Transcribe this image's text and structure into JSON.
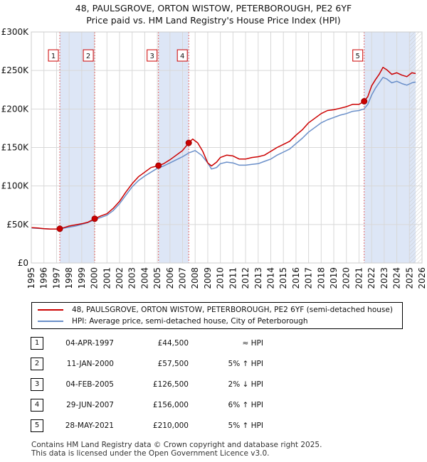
{
  "title": {
    "line1": "48, PAULSGROVE, ORTON WISTOW, PETERBOROUGH, PE2 6YF",
    "line2": "Price paid vs. HM Land Registry's House Price Index (HPI)"
  },
  "colors": {
    "property": "#cc0000",
    "hpi": "#6a8fc9",
    "shade": "#dde6f6",
    "grid": "#d8d8d8"
  },
  "chart_data": {
    "type": "line",
    "xlim": [
      1995,
      2026
    ],
    "ylim": [
      0,
      300000
    ],
    "x_ticks": [
      1995,
      1996,
      1997,
      1998,
      1999,
      2000,
      2001,
      2002,
      2003,
      2004,
      2005,
      2006,
      2007,
      2008,
      2009,
      2010,
      2011,
      2012,
      2013,
      2014,
      2015,
      2016,
      2017,
      2018,
      2019,
      2020,
      2021,
      2022,
      2023,
      2024,
      2025,
      2026
    ],
    "y_ticks": [
      {
        "value": 0,
        "label": "£0"
      },
      {
        "value": 50000,
        "label": "£50K"
      },
      {
        "value": 100000,
        "label": "£100K"
      },
      {
        "value": 150000,
        "label": "£150K"
      },
      {
        "value": 200000,
        "label": "£200K"
      },
      {
        "value": 250000,
        "label": "£250K"
      },
      {
        "value": 300000,
        "label": "£300K"
      }
    ],
    "series": [
      {
        "name": "48, PAULSGROVE, ORTON WISTOW, PETERBOROUGH, PE2 6YF (semi-detached house)",
        "x": [
          1995.0,
          1995.5,
          1996.0,
          1996.5,
          1997.0,
          1997.26,
          1997.6,
          1998.0,
          1998.5,
          1999.0,
          1999.5,
          2000.03,
          2000.5,
          2001.0,
          2001.5,
          2002.0,
          2002.5,
          2003.0,
          2003.5,
          2004.0,
          2004.5,
          2005.09,
          2005.5,
          2006.0,
          2006.5,
          2007.0,
          2007.49,
          2007.8,
          2008.2,
          2008.6,
          2009.0,
          2009.3,
          2009.7,
          2010.0,
          2010.5,
          2011.0,
          2011.5,
          2012.0,
          2012.5,
          2013.0,
          2013.5,
          2014.0,
          2014.5,
          2015.0,
          2015.5,
          2016.0,
          2016.5,
          2017.0,
          2017.5,
          2018.0,
          2018.5,
          2019.0,
          2019.5,
          2020.0,
          2020.5,
          2021.0,
          2021.41,
          2021.7,
          2022.0,
          2022.3,
          2022.6,
          2022.9,
          2023.2,
          2023.6,
          2024.0,
          2024.4,
          2024.8,
          2025.2,
          2025.5
        ],
        "y": [
          46000,
          45500,
          44500,
          44000,
          44000,
          44500,
          46000,
          48000,
          49500,
          51000,
          53000,
          57500,
          61000,
          64000,
          71000,
          80000,
          92000,
          103000,
          112000,
          118000,
          124000,
          126500,
          129000,
          134000,
          140000,
          146000,
          156000,
          161000,
          156000,
          145000,
          130000,
          126000,
          131000,
          137000,
          140000,
          139000,
          135000,
          135000,
          137000,
          138000,
          140000,
          145000,
          150000,
          154000,
          158000,
          166000,
          173000,
          182000,
          188000,
          194000,
          198000,
          199000,
          201000,
          203000,
          206000,
          206000,
          210000,
          216000,
          230000,
          238000,
          245000,
          254000,
          251000,
          245000,
          247000,
          244000,
          242000,
          247000,
          246000
        ]
      },
      {
        "name": "HPI: Average price, semi-detached house, City of Peterborough",
        "x": [
          1995.0,
          1995.5,
          1996.0,
          1996.5,
          1997.0,
          1997.5,
          1998.0,
          1998.5,
          1999.0,
          1999.5,
          2000.0,
          2000.5,
          2001.0,
          2001.5,
          2002.0,
          2002.5,
          2003.0,
          2003.5,
          2004.0,
          2004.5,
          2005.0,
          2005.5,
          2006.0,
          2006.5,
          2007.0,
          2007.5,
          2008.0,
          2008.5,
          2009.0,
          2009.3,
          2009.7,
          2010.0,
          2010.5,
          2011.0,
          2011.5,
          2012.0,
          2012.5,
          2013.0,
          2013.5,
          2014.0,
          2014.5,
          2015.0,
          2015.5,
          2016.0,
          2016.5,
          2017.0,
          2017.5,
          2018.0,
          2018.5,
          2019.0,
          2019.5,
          2020.0,
          2020.5,
          2021.0,
          2021.4,
          2021.7,
          2022.0,
          2022.3,
          2022.6,
          2022.9,
          2023.2,
          2023.6,
          2024.0,
          2024.4,
          2024.8,
          2025.2,
          2025.5
        ],
        "y": [
          45500,
          45000,
          44500,
          44000,
          44000,
          45000,
          46500,
          48000,
          50000,
          52500,
          56000,
          59000,
          62000,
          68000,
          77000,
          88000,
          99000,
          107000,
          113000,
          118000,
          123000,
          126000,
          130000,
          134000,
          138000,
          143000,
          146000,
          140000,
          130000,
          122000,
          124000,
          129000,
          131000,
          130000,
          127000,
          127000,
          128000,
          129000,
          132000,
          135000,
          140000,
          144000,
          148000,
          155000,
          162000,
          170000,
          176000,
          182000,
          186000,
          189000,
          192000,
          194000,
          197000,
          198000,
          200000,
          206000,
          218000,
          227000,
          234000,
          241000,
          239000,
          234000,
          236000,
          233000,
          231000,
          234000,
          235000
        ]
      }
    ],
    "sales": [
      {
        "num": "1",
        "x": 1997.26,
        "y": 44500
      },
      {
        "num": "2",
        "x": 2000.03,
        "y": 57500
      },
      {
        "num": "3",
        "x": 2005.09,
        "y": 126500
      },
      {
        "num": "4",
        "x": 2007.49,
        "y": 156000
      },
      {
        "num": "5",
        "x": 2021.41,
        "y": 210000
      }
    ],
    "shaded_spans": [
      [
        1997.26,
        2000.03
      ],
      [
        2005.09,
        2007.49
      ],
      [
        2021.41,
        2025.5
      ]
    ],
    "hatch_from": 2025.0,
    "legend": "below-chart"
  },
  "legend": {
    "property_label": "48, PAULSGROVE, ORTON WISTOW, PETERBOROUGH, PE2 6YF (semi-detached house)",
    "hpi_label": "HPI: Average price, semi-detached house, City of Peterborough"
  },
  "table": [
    {
      "num": "1",
      "date": "04-APR-1997",
      "price": "£44,500",
      "hpi": "≈ HPI"
    },
    {
      "num": "2",
      "date": "11-JAN-2000",
      "price": "£57,500",
      "hpi": "5% ↑ HPI"
    },
    {
      "num": "3",
      "date": "04-FEB-2005",
      "price": "£126,500",
      "hpi": "2% ↓ HPI"
    },
    {
      "num": "4",
      "date": "29-JUN-2007",
      "price": "£156,000",
      "hpi": "6% ↑ HPI"
    },
    {
      "num": "5",
      "date": "28-MAY-2021",
      "price": "£210,000",
      "hpi": "5% ↑ HPI"
    }
  ],
  "footer": {
    "line1": "Contains HM Land Registry data © Crown copyright and database right 2025.",
    "line2": "This data is licensed under the Open Government Licence v3.0."
  }
}
